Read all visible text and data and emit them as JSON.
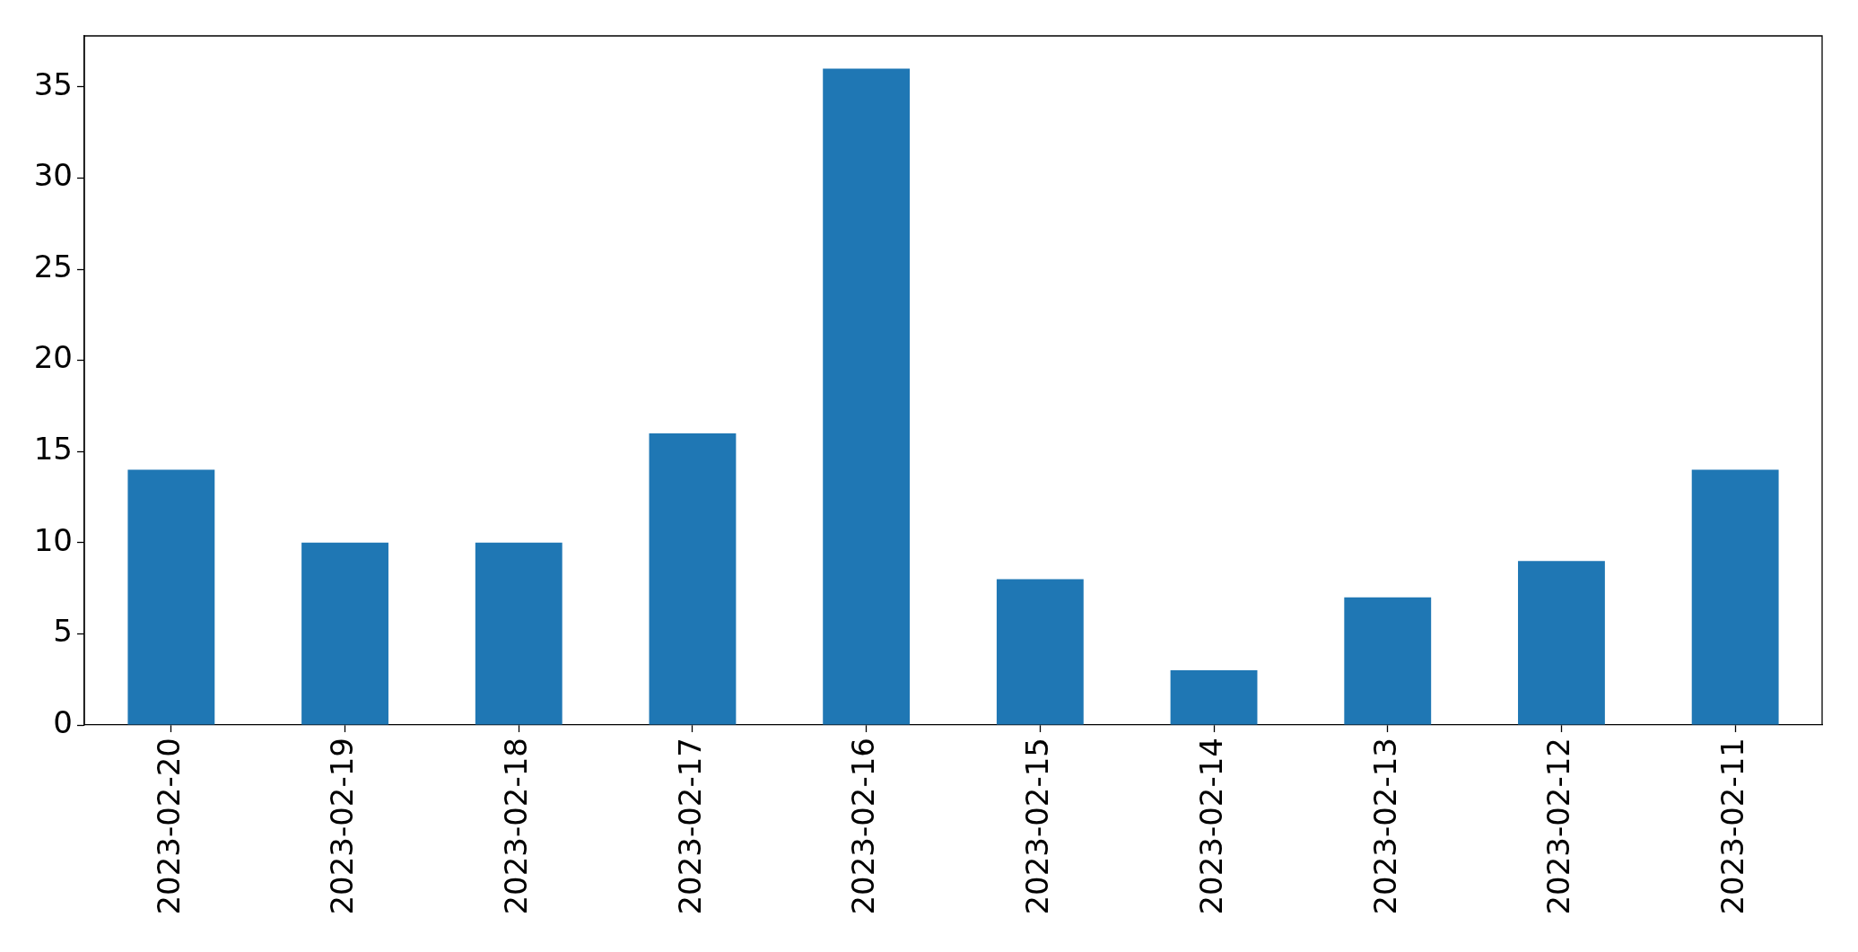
{
  "chart_data": {
    "type": "bar",
    "categories": [
      "2023-02-20",
      "2023-02-19",
      "2023-02-18",
      "2023-02-17",
      "2023-02-16",
      "2023-02-15",
      "2023-02-14",
      "2023-02-13",
      "2023-02-12",
      "2023-02-11"
    ],
    "values": [
      14,
      10,
      10,
      16,
      36,
      8,
      3,
      7,
      9,
      14
    ],
    "color": "#1f77b4",
    "ylim": [
      0,
      37.8
    ],
    "yticks": [
      0,
      5,
      10,
      15,
      20,
      25,
      30,
      35
    ],
    "grid": false,
    "legend": false
  }
}
